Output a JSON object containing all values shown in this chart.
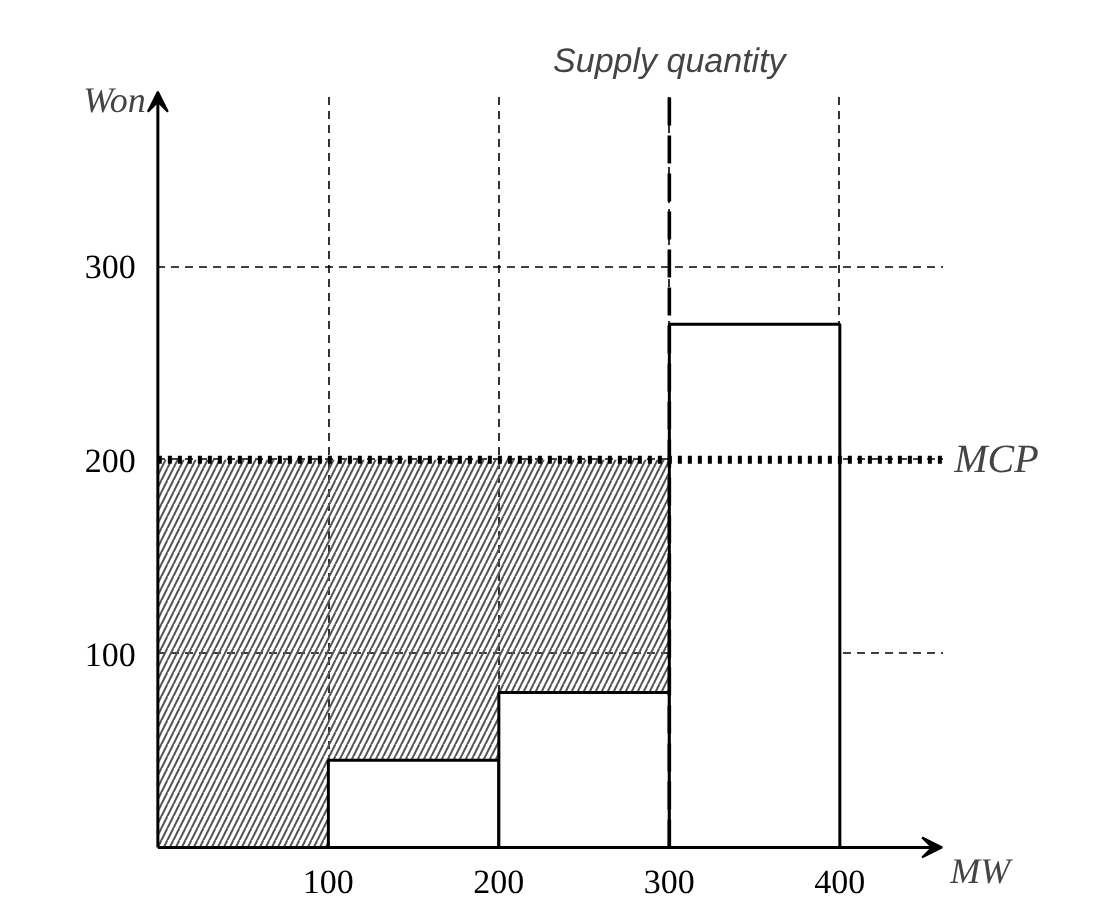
{
  "chart_data": {
    "type": "histogram",
    "xlabel": "MW",
    "ylabel": "Won",
    "bins": [
      100,
      200,
      300,
      400
    ],
    "values": [
      45,
      80,
      270
    ],
    "color": "#ffffff",
    "xlim": [
      0,
      460
    ],
    "ylim": [
      0,
      390
    ],
    "xticks": [
      100,
      200,
      300,
      400
    ],
    "yticks": [
      100,
      200,
      300
    ],
    "grid": true,
    "ref_lines": [
      {
        "axis": "y",
        "value": 200,
        "label": "MCP",
        "line_style": "dotted",
        "color": "#000000"
      },
      {
        "axis": "x",
        "value": 300,
        "label": "Supply quantity",
        "line_style": "dashed",
        "color": "#000000"
      }
    ],
    "bands": [
      {
        "axis": "x",
        "from": 0,
        "to": 300,
        "color": "#555555"
      }
    ]
  }
}
